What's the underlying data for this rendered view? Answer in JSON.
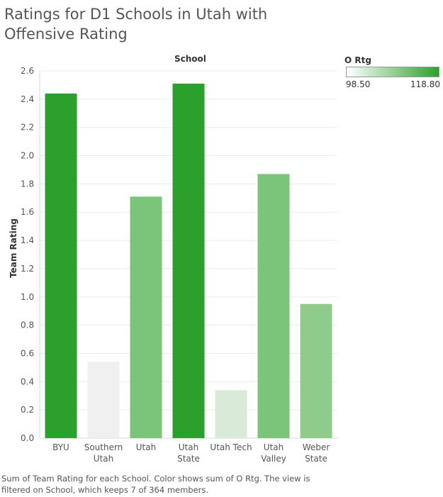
{
  "title": "Ratings for D1 Schools in Utah with Offensive Rating",
  "column_header": "School",
  "caption": "Sum of Team Rating for each School.  Color shows sum of O Rtg. The view is filtered on School, which keeps 7 of 364 members.",
  "legend": {
    "title": "O Rtg",
    "min_label": "98.50",
    "max_label": "118.80",
    "color_low": "#ffffff",
    "color_high": "#2ca02c"
  },
  "chart_data": {
    "type": "bar",
    "title": "Ratings for D1 Schools in Utah with Offensive Rating",
    "xlabel": "School",
    "ylabel": "Team Rating",
    "ylim": [
      0,
      2.6
    ],
    "yticks": [
      "0.0",
      "0.2",
      "0.4",
      "0.6",
      "0.8",
      "1.0",
      "1.2",
      "1.4",
      "1.6",
      "1.8",
      "2.0",
      "2.2",
      "2.4",
      "2.6"
    ],
    "categories": [
      [
        "BYU"
      ],
      [
        "Southern",
        "Utah"
      ],
      [
        "Utah"
      ],
      [
        "Utah",
        "State"
      ],
      [
        "Utah Tech"
      ],
      [
        "Utah",
        "Valley"
      ],
      [
        "Weber",
        "State"
      ]
    ],
    "values": [
      2.44,
      0.54,
      1.71,
      2.51,
      0.34,
      1.87,
      0.95
    ],
    "colors": [
      "#2ca02c",
      "#f0f0f0",
      "#7ac57a",
      "#2ca02c",
      "#d9ead8",
      "#7ac57a",
      "#8fcc8a"
    ],
    "grid": true,
    "legend_position": "top-right"
  }
}
